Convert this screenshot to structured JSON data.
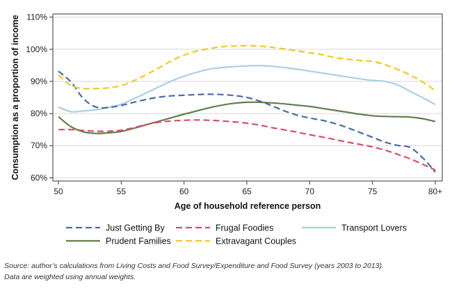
{
  "chart_data": {
    "type": "line",
    "xlabel": "Age of household reference person",
    "ylabel": "Consumption as a proportion of income",
    "xlim": [
      50,
      80
    ],
    "ylim": [
      59,
      111
    ],
    "x_ticks": [
      50,
      55,
      60,
      65,
      70,
      75,
      80
    ],
    "x_tick_labels": [
      "50",
      "55",
      "60",
      "65",
      "70",
      "75",
      "80+"
    ],
    "y_ticks": [
      60,
      70,
      80,
      90,
      100,
      110
    ],
    "y_tick_labels": [
      "60%",
      "70%",
      "80%",
      "90%",
      "100%",
      "110%"
    ],
    "grid": true,
    "legend_position": "bottom",
    "x": [
      50,
      51,
      52,
      53,
      54,
      55,
      56,
      57,
      58,
      59,
      60,
      61,
      62,
      63,
      64,
      65,
      66,
      67,
      68,
      69,
      70,
      71,
      72,
      73,
      74,
      75,
      76,
      77,
      78,
      79,
      80
    ],
    "series": [
      {
        "name": "Just Getting By",
        "color": "#4a6aa8",
        "dash": "dashed",
        "values": [
          93.2,
          89.8,
          84.6,
          82.0,
          81.9,
          82.5,
          83.5,
          84.4,
          85.1,
          85.5,
          85.7,
          85.9,
          86.0,
          85.9,
          85.6,
          85.0,
          83.9,
          82.4,
          80.8,
          79.5,
          78.6,
          77.9,
          76.9,
          75.6,
          74.1,
          72.6,
          71.1,
          70.1,
          69.4,
          66.2,
          61.8
        ]
      },
      {
        "name": "Frugal Foodies",
        "color": "#d2506a",
        "dash": "dashed",
        "values": [
          75.0,
          75.0,
          74.7,
          74.5,
          74.5,
          74.8,
          75.6,
          76.6,
          77.3,
          77.7,
          77.9,
          78.0,
          77.9,
          77.7,
          77.4,
          77.0,
          76.4,
          75.6,
          74.9,
          74.2,
          73.4,
          72.7,
          71.9,
          71.1,
          70.4,
          69.6,
          68.6,
          67.3,
          65.9,
          64.2,
          62.4
        ]
      },
      {
        "name": "Transport Lovers",
        "color": "#a9d0e4",
        "dash": "solid",
        "values": [
          82.0,
          80.6,
          80.8,
          81.2,
          81.9,
          82.9,
          84.6,
          86.4,
          88.3,
          90.1,
          91.6,
          92.8,
          93.8,
          94.3,
          94.6,
          94.8,
          94.9,
          94.7,
          94.3,
          93.8,
          93.2,
          92.6,
          92.0,
          91.4,
          90.8,
          90.3,
          90.0,
          88.9,
          86.9,
          84.9,
          82.8
        ]
      },
      {
        "name": "Prudent Families",
        "color": "#617e4a",
        "dash": "solid",
        "values": [
          79.0,
          75.9,
          74.3,
          73.8,
          74.0,
          74.4,
          75.4,
          76.5,
          77.6,
          78.7,
          79.8,
          80.8,
          81.8,
          82.6,
          83.2,
          83.5,
          83.5,
          83.3,
          83.0,
          82.6,
          82.2,
          81.6,
          81.0,
          80.4,
          79.8,
          79.3,
          79.1,
          79.0,
          78.9,
          78.4,
          77.5
        ]
      },
      {
        "name": "Extravagant Couples",
        "color": "#f5c62a",
        "dash": "dashed",
        "values": [
          92.0,
          88.7,
          87.8,
          87.8,
          88.0,
          88.7,
          90.2,
          92.1,
          94.2,
          96.4,
          98.2,
          99.4,
          100.2,
          100.8,
          101.0,
          101.1,
          101.0,
          100.6,
          100.1,
          99.5,
          98.9,
          98.3,
          97.4,
          96.9,
          96.5,
          96.2,
          95.2,
          93.7,
          92.0,
          89.8,
          87.1
        ]
      }
    ],
    "legend_order": [
      0,
      1,
      2,
      3,
      4
    ]
  },
  "source": {
    "line1": "Source: author’s calculations from Living Costs and Food Survey/Expenditure and Food Survey (years 2003 to 2013).",
    "line2": "Data are weighted using annual weights."
  }
}
